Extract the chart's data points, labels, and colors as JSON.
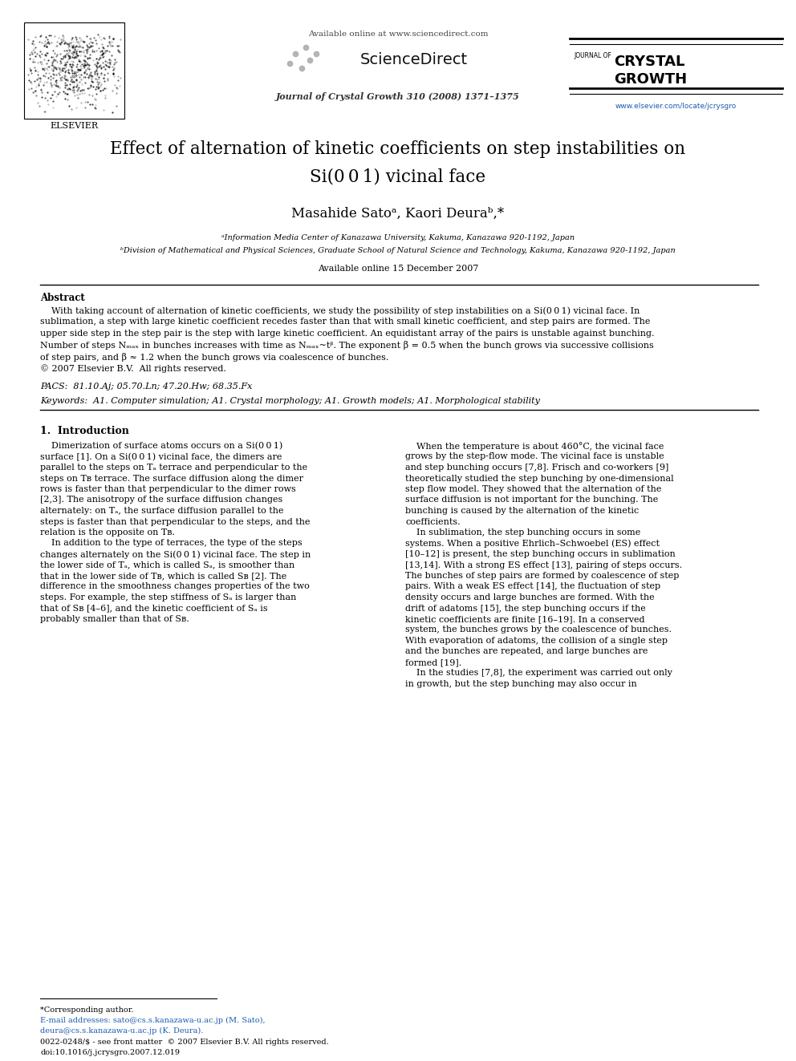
{
  "bg_color": "#ffffff",
  "page_width": 9.92,
  "page_height": 13.23,
  "header_available": "Available online at www.sciencedirect.com",
  "header_journal_line": "Journal of Crystal Growth 310 (2008) 1371–1375",
  "header_url": "www.elsevier.com/locate/jcrysgro",
  "title_line1": "Effect of alternation of kinetic coefficients on step instabilities on",
  "title_line2": "Si(0 0 1) vicinal face",
  "authors": "Masahide Satoᵃ, Kaori Deuraᵇ,*",
  "affil_a": "ᵃInformation Media Center of Kanazawa University, Kakuma, Kanazawa 920-1192, Japan",
  "affil_b": "ᵇDivision of Mathematical and Physical Sciences, Graduate School of Natural Science and Technology, Kakuma, Kanazawa 920-1192, Japan",
  "available_date": "Available online 15 December 2007",
  "abstract_title": "Abstract",
  "pacs": "PACS:  81.10.Aj; 05.70.Ln; 47.20.Hw; 68.35.Fx",
  "keywords": "Keywords:  A1. Computer simulation; A1. Crystal morphology; A1. Growth models; A1. Morphological stability",
  "section1": "1.  Introduction",
  "footnote1": "*Corresponding author.",
  "footnote2a": "E-mail addresses: sato@cs.s.kanazawa-u.ac.jp (M. Sato),",
  "footnote2b": "deura@cs.s.kanazawa-u.ac.jp (K. Deura).",
  "footer1": "0022-0248/$ - see front matter  © 2007 Elsevier B.V. All rights reserved.",
  "footer2": "doi:10.1016/j.jcrysgro.2007.12.019"
}
